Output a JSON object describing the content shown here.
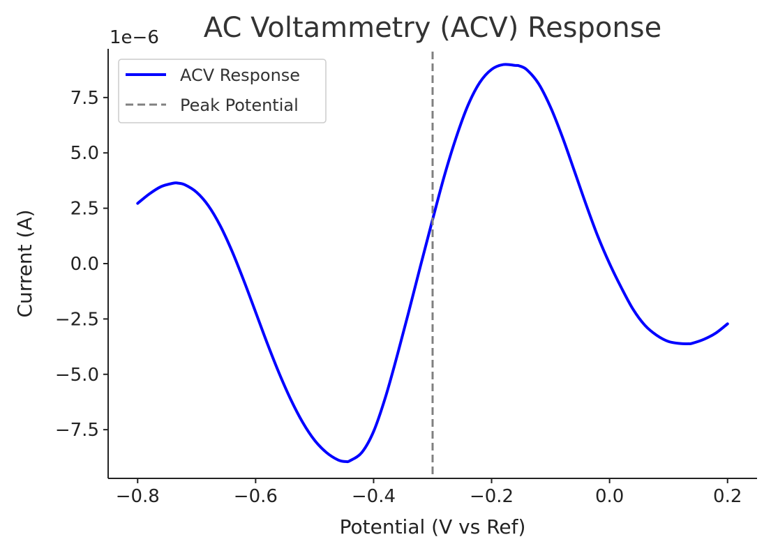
{
  "chart_data": {
    "type": "line",
    "title": "AC Voltammetry (ACV) Response",
    "xlabel": "Potential (V vs Ref)",
    "ylabel": "Current (A)",
    "y_offset_text": "1e−6",
    "xlim": [
      -0.85,
      0.25
    ],
    "ylim": [
      -9.7,
      9.7
    ],
    "x_ticks": [
      -0.8,
      -0.6,
      -0.4,
      -0.2,
      0.0,
      0.2
    ],
    "x_tick_labels": [
      "−0.8",
      "−0.6",
      "−0.4",
      "−0.2",
      "0.0",
      "0.2"
    ],
    "y_ticks": [
      -7.5,
      -5.0,
      -2.5,
      0.0,
      2.5,
      5.0,
      7.5
    ],
    "y_tick_labels": [
      "−7.5",
      "−5.0",
      "−2.5",
      "0.0",
      "2.5",
      "5.0",
      "7.5"
    ],
    "grid": false,
    "legend_position": "top-left",
    "series": [
      {
        "name": "ACV Response",
        "color": "#0000ff",
        "style": "solid",
        "x": [
          -0.8,
          -0.78,
          -0.76,
          -0.74,
          -0.733,
          -0.72,
          -0.7,
          -0.68,
          -0.66,
          -0.64,
          -0.62,
          -0.6,
          -0.58,
          -0.56,
          -0.54,
          -0.52,
          -0.5,
          -0.48,
          -0.46,
          -0.447,
          -0.44,
          -0.42,
          -0.4,
          -0.38,
          -0.36,
          -0.34,
          -0.32,
          -0.3,
          -0.28,
          -0.26,
          -0.24,
          -0.22,
          -0.2,
          -0.18,
          -0.16,
          -0.153,
          -0.14,
          -0.12,
          -0.1,
          -0.08,
          -0.06,
          -0.04,
          -0.02,
          0.0,
          0.02,
          0.04,
          0.06,
          0.08,
          0.1,
          0.12,
          0.133,
          0.14,
          0.16,
          0.18,
          0.2
        ],
        "values": [
          2.72,
          3.15,
          3.48,
          3.63,
          3.64,
          3.56,
          3.22,
          2.61,
          1.71,
          0.56,
          -0.77,
          -2.19,
          -3.62,
          -4.96,
          -6.16,
          -7.18,
          -7.98,
          -8.53,
          -8.87,
          -8.94,
          -8.9,
          -8.53,
          -7.58,
          -6.04,
          -4.15,
          -2.13,
          -0.05,
          1.99,
          3.97,
          5.7,
          7.15,
          8.18,
          8.77,
          8.99,
          8.95,
          8.93,
          8.75,
          8.11,
          7.06,
          5.72,
          4.21,
          2.68,
          1.24,
          0.0,
          -1.09,
          -2.07,
          -2.79,
          -3.24,
          -3.52,
          -3.61,
          -3.62,
          -3.6,
          -3.42,
          -3.14,
          -2.72
        ]
      },
      {
        "name": "Peak Potential",
        "color": "#808080",
        "style": "dashed",
        "type": "vline",
        "x": -0.3
      }
    ]
  }
}
